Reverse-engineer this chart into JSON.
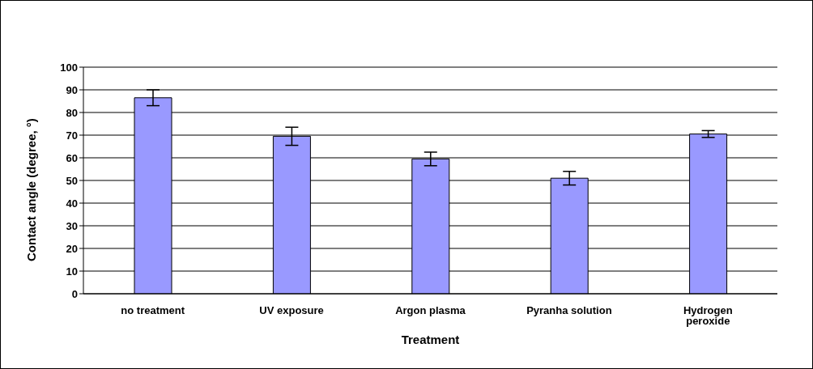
{
  "chart_data": {
    "type": "bar",
    "xlabel": "Treatment",
    "ylabel": "Contact angle (degree, °)",
    "categories": [
      "no treatment",
      "UV exposure",
      "Argon plasma",
      "Pyranha solution",
      "Hydrogen peroxide"
    ],
    "values": [
      86.5,
      69.5,
      59.5,
      51,
      70.5
    ],
    "errors": [
      3.5,
      4,
      3,
      3,
      1.5
    ],
    "color": "#9999ff",
    "ylim": [
      0,
      100
    ],
    "yticks": [
      0,
      10,
      20,
      30,
      40,
      50,
      60,
      70,
      80,
      90,
      100
    ],
    "grid": "y",
    "legend": false
  }
}
